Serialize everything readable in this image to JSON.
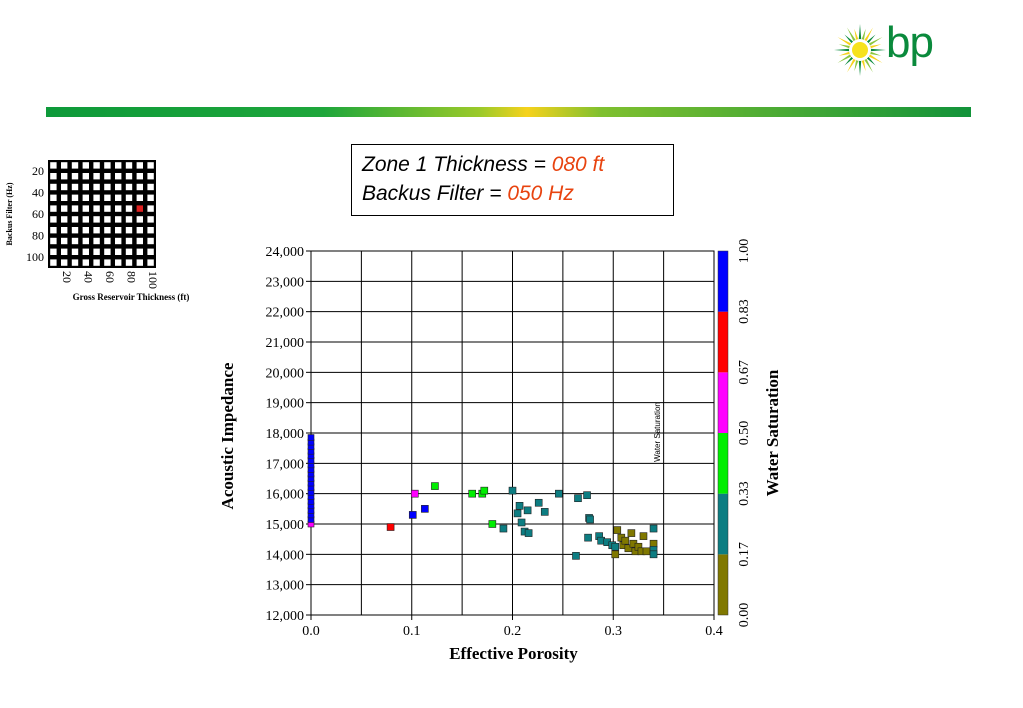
{
  "logo": {
    "text": "bp",
    "colors": {
      "green": "#0a8a3c",
      "yellow": "#f6d21c"
    }
  },
  "header_bar": {
    "colors": [
      "#0e9a3a",
      "#f6d21c",
      "#12933a"
    ]
  },
  "title": {
    "line1_label": "Zone 1 Thickness = ",
    "line1_value": "080 ft",
    "line2_label": "Backus Filter = ",
    "line2_value": "050 Hz",
    "value_color": "#e8430f"
  },
  "selector_grid": {
    "rows": 10,
    "cols": 10,
    "y_label": "Backus Filter (Hz)",
    "x_label": "Gross Reservoir Thickness (ft)",
    "y_ticks": [
      "20",
      "40",
      "60",
      "80",
      "100"
    ],
    "x_ticks": [
      "20",
      "40",
      "60",
      "80",
      "100"
    ],
    "selected_cell": {
      "row": 4,
      "col": 8
    },
    "selected_color": "#e02020"
  },
  "chart_data": {
    "type": "scatter",
    "xlabel": "Effective Porosity",
    "ylabel": "Acoustic Impedance",
    "xlim": [
      0,
      0.4
    ],
    "ylim": [
      12000,
      24000
    ],
    "x_ticks": [
      "0.0",
      "0.1",
      "0.2",
      "0.3",
      "0.4"
    ],
    "y_ticks": [
      "12,000",
      "13,000",
      "14,000",
      "15,000",
      "16,000",
      "17,000",
      "18,000",
      "19,000",
      "20,000",
      "21,000",
      "22,000",
      "23,000",
      "24,000"
    ],
    "grid": true,
    "inner_annotation": "Water Saturation",
    "colorbar": {
      "label": "Water Saturation",
      "ticks": [
        "0.00",
        "0.17",
        "0.33",
        "0.50",
        "0.67",
        "0.83",
        "1.00"
      ],
      "colors": [
        "#807800",
        "#0d7d82",
        "#00ee00",
        "#ff00ff",
        "#ff0000",
        "#0000ff"
      ]
    },
    "points": [
      {
        "x": 0.0,
        "y": 15000,
        "c": "#ff00ff"
      },
      {
        "x": 0.0,
        "y": 15150,
        "c": "#0000ff"
      },
      {
        "x": 0.0,
        "y": 15300,
        "c": "#0000ff"
      },
      {
        "x": 0.0,
        "y": 15450,
        "c": "#0000ff"
      },
      {
        "x": 0.0,
        "y": 15600,
        "c": "#0000ff"
      },
      {
        "x": 0.0,
        "y": 15750,
        "c": "#0000ff"
      },
      {
        "x": 0.0,
        "y": 15900,
        "c": "#0000ff"
      },
      {
        "x": 0.0,
        "y": 16050,
        "c": "#0000ff"
      },
      {
        "x": 0.0,
        "y": 16200,
        "c": "#0000ff"
      },
      {
        "x": 0.0,
        "y": 16350,
        "c": "#0000ff"
      },
      {
        "x": 0.0,
        "y": 16500,
        "c": "#0000ff"
      },
      {
        "x": 0.0,
        "y": 16650,
        "c": "#0000ff"
      },
      {
        "x": 0.0,
        "y": 16800,
        "c": "#0000ff"
      },
      {
        "x": 0.0,
        "y": 16950,
        "c": "#0000ff"
      },
      {
        "x": 0.0,
        "y": 17100,
        "c": "#0000ff"
      },
      {
        "x": 0.0,
        "y": 17250,
        "c": "#0000ff"
      },
      {
        "x": 0.0,
        "y": 17400,
        "c": "#0000ff"
      },
      {
        "x": 0.0,
        "y": 17550,
        "c": "#0000ff"
      },
      {
        "x": 0.0,
        "y": 17700,
        "c": "#0000ff"
      },
      {
        "x": 0.0,
        "y": 17850,
        "c": "#0000ff"
      },
      {
        "x": 0.079,
        "y": 14900,
        "c": "#ff0000"
      },
      {
        "x": 0.101,
        "y": 15300,
        "c": "#0000ff"
      },
      {
        "x": 0.103,
        "y": 16000,
        "c": "#ff00ff"
      },
      {
        "x": 0.113,
        "y": 15500,
        "c": "#0000ff"
      },
      {
        "x": 0.123,
        "y": 16250,
        "c": "#00ee00"
      },
      {
        "x": 0.16,
        "y": 16000,
        "c": "#00ee00"
      },
      {
        "x": 0.17,
        "y": 16000,
        "c": "#00ee00"
      },
      {
        "x": 0.172,
        "y": 16100,
        "c": "#00ee00"
      },
      {
        "x": 0.18,
        "y": 15000,
        "c": "#00ee00"
      },
      {
        "x": 0.191,
        "y": 14850,
        "c": "#0d7d82"
      },
      {
        "x": 0.2,
        "y": 16100,
        "c": "#0d7d82"
      },
      {
        "x": 0.205,
        "y": 15350,
        "c": "#0d7d82"
      },
      {
        "x": 0.207,
        "y": 15600,
        "c": "#0d7d82"
      },
      {
        "x": 0.209,
        "y": 15050,
        "c": "#0d7d82"
      },
      {
        "x": 0.212,
        "y": 14750,
        "c": "#0d7d82"
      },
      {
        "x": 0.215,
        "y": 15450,
        "c": "#0d7d82"
      },
      {
        "x": 0.216,
        "y": 14700,
        "c": "#0d7d82"
      },
      {
        "x": 0.226,
        "y": 15700,
        "c": "#0d7d82"
      },
      {
        "x": 0.232,
        "y": 15400,
        "c": "#0d7d82"
      },
      {
        "x": 0.246,
        "y": 16000,
        "c": "#0d7d82"
      },
      {
        "x": 0.263,
        "y": 13950,
        "c": "#0d7d82"
      },
      {
        "x": 0.265,
        "y": 15850,
        "c": "#0d7d82"
      },
      {
        "x": 0.274,
        "y": 15950,
        "c": "#0d7d82"
      },
      {
        "x": 0.275,
        "y": 14550,
        "c": "#0d7d82"
      },
      {
        "x": 0.276,
        "y": 15200,
        "c": "#0d7d82"
      },
      {
        "x": 0.277,
        "y": 15150,
        "c": "#0d7d82"
      },
      {
        "x": 0.286,
        "y": 14600,
        "c": "#0d7d82"
      },
      {
        "x": 0.288,
        "y": 14450,
        "c": "#0d7d82"
      },
      {
        "x": 0.294,
        "y": 14400,
        "c": "#0d7d82"
      },
      {
        "x": 0.299,
        "y": 14300,
        "c": "#0d7d82"
      },
      {
        "x": 0.302,
        "y": 14250,
        "c": "#0d7d82"
      },
      {
        "x": 0.302,
        "y": 14000,
        "c": "#807800"
      },
      {
        "x": 0.304,
        "y": 14800,
        "c": "#807800"
      },
      {
        "x": 0.308,
        "y": 14550,
        "c": "#807800"
      },
      {
        "x": 0.31,
        "y": 14300,
        "c": "#807800"
      },
      {
        "x": 0.312,
        "y": 14450,
        "c": "#807800"
      },
      {
        "x": 0.315,
        "y": 14200,
        "c": "#807800"
      },
      {
        "x": 0.318,
        "y": 14700,
        "c": "#807800"
      },
      {
        "x": 0.32,
        "y": 14350,
        "c": "#807800"
      },
      {
        "x": 0.322,
        "y": 14100,
        "c": "#807800"
      },
      {
        "x": 0.325,
        "y": 14250,
        "c": "#807800"
      },
      {
        "x": 0.328,
        "y": 14100,
        "c": "#807800"
      },
      {
        "x": 0.33,
        "y": 14600,
        "c": "#807800"
      },
      {
        "x": 0.333,
        "y": 14100,
        "c": "#807800"
      },
      {
        "x": 0.34,
        "y": 14850,
        "c": "#0d7d82"
      },
      {
        "x": 0.34,
        "y": 14350,
        "c": "#807800"
      },
      {
        "x": 0.34,
        "y": 14150,
        "c": "#0d7d82"
      },
      {
        "x": 0.34,
        "y": 14000,
        "c": "#0d7d82"
      }
    ]
  }
}
